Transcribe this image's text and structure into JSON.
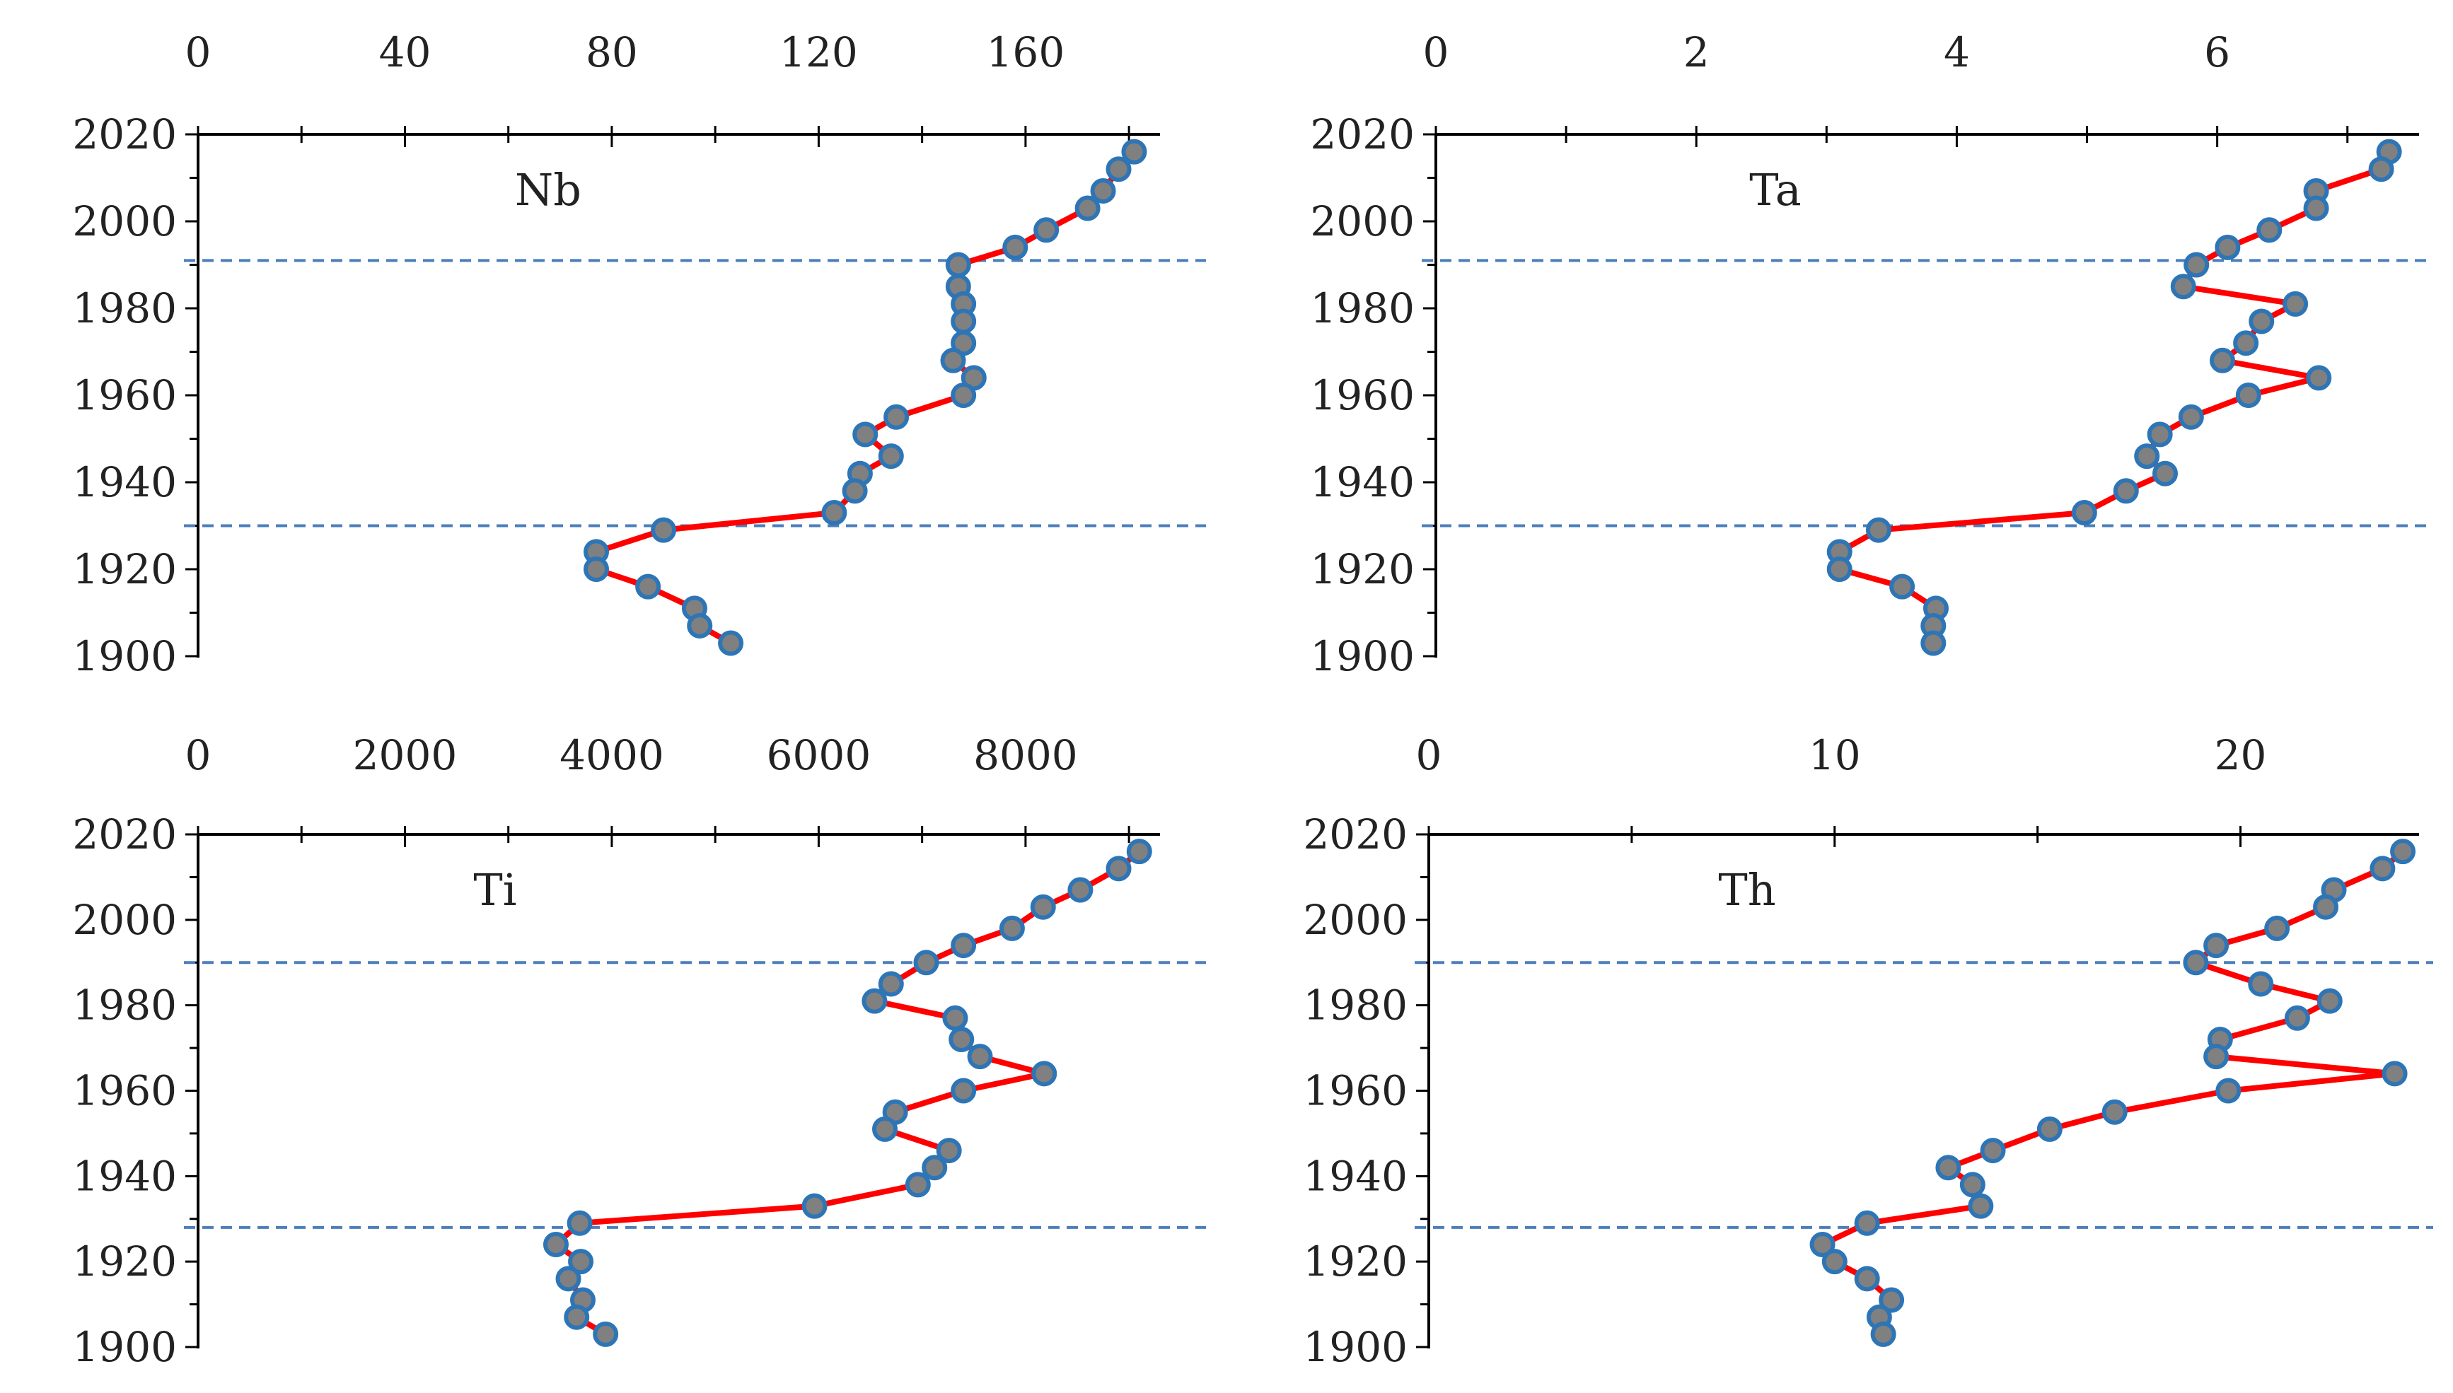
{
  "chart_data": [
    {
      "type": "line",
      "title": "Nb",
      "x_ticks": [
        "0",
        "40",
        "80",
        "120",
        "160"
      ],
      "y_ticks": [
        "1900",
        "1920",
        "1940",
        "1960",
        "1980",
        "2000",
        "2020"
      ],
      "xlim": [
        0,
        186
      ],
      "ylim": [
        1900,
        2020
      ],
      "reference_years": [
        1991,
        1930
      ],
      "series": [
        {
          "x": [
            181,
            178,
            175,
            172,
            164,
            158,
            147,
            147,
            148,
            148,
            148,
            146,
            150,
            148,
            135,
            129,
            134,
            128,
            127,
            123,
            90,
            77,
            77,
            87,
            96,
            97,
            103
          ],
          "y": [
            2016,
            2012,
            2007,
            2003,
            1998,
            1994,
            1990,
            1985,
            1981,
            1977,
            1972,
            1968,
            1964,
            1960,
            1955,
            1951,
            1946,
            1942,
            1938,
            1933,
            1929,
            1924,
            1920,
            1916,
            1911,
            1907,
            1903
          ]
        }
      ]
    },
    {
      "type": "line",
      "title": "Ta",
      "x_ticks": [
        "0",
        "2",
        "4",
        "6"
      ],
      "y_ticks": [
        "1900",
        "1920",
        "1940",
        "1960",
        "1980",
        "2000",
        "2020"
      ],
      "xlim": [
        0,
        7.55
      ],
      "ylim": [
        1900,
        2020
      ],
      "reference_years": [
        1991,
        1930
      ],
      "series": [
        {
          "x": [
            7.32,
            7.26,
            6.76,
            6.76,
            6.4,
            6.08,
            5.84,
            5.74,
            6.6,
            6.34,
            6.22,
            6.04,
            6.78,
            6.24,
            5.8,
            5.56,
            5.46,
            5.6,
            5.3,
            4.98,
            3.4,
            3.1,
            3.1,
            3.58,
            3.84,
            3.82,
            3.82
          ],
          "y": [
            2016,
            2012,
            2007,
            2003,
            1998,
            1994,
            1990,
            1985,
            1981,
            1977,
            1972,
            1968,
            1964,
            1960,
            1955,
            1951,
            1946,
            1942,
            1938,
            1933,
            1929,
            1924,
            1920,
            1916,
            1911,
            1907,
            1903
          ]
        }
      ]
    },
    {
      "type": "line",
      "title": "Ti",
      "x_ticks": [
        "0",
        "2000",
        "4000",
        "6000",
        "8000"
      ],
      "y_ticks": [
        "1900",
        "1920",
        "1940",
        "1960",
        "1980",
        "2000",
        "2020"
      ],
      "xlim": [
        0,
        9300
      ],
      "ylim": [
        1900,
        2020
      ],
      "reference_years": [
        1990,
        1928
      ],
      "series": [
        {
          "x": [
            9100,
            8900,
            8530,
            8170,
            7870,
            7400,
            7040,
            6700,
            6540,
            7320,
            7380,
            7560,
            8180,
            7400,
            6740,
            6640,
            7260,
            7120,
            6960,
            5960,
            3690,
            3460,
            3700,
            3580,
            3720,
            3660,
            3940
          ],
          "y": [
            2016,
            2012,
            2007,
            2003,
            1998,
            1994,
            1990,
            1985,
            1981,
            1977,
            1972,
            1968,
            1964,
            1960,
            1955,
            1951,
            1946,
            1942,
            1938,
            1933,
            1929,
            1924,
            1920,
            1916,
            1911,
            1907,
            1903
          ]
        }
      ]
    },
    {
      "type": "line",
      "title": "Th",
      "x_ticks": [
        "0",
        "10",
        "20"
      ],
      "y_ticks": [
        "1900",
        "1920",
        "1940",
        "1960",
        "1980",
        "2000",
        "2020"
      ],
      "xlim": [
        0,
        24.4
      ],
      "ylim": [
        1900,
        2020
      ],
      "reference_years": [
        1990,
        1928
      ],
      "series": [
        {
          "x": [
            24,
            23.5,
            22.3,
            22.1,
            20.9,
            19.4,
            18.9,
            20.5,
            22.2,
            21.4,
            19.5,
            19.4,
            23.8,
            19.7,
            16.9,
            15.3,
            13.9,
            12.8,
            13.4,
            13.6,
            10.8,
            9.7,
            10,
            10.8,
            11.4,
            11.1,
            11.2
          ],
          "y": [
            2016,
            2012,
            2007,
            2003,
            1998,
            1994,
            1990,
            1985,
            1981,
            1977,
            1972,
            1968,
            1964,
            1960,
            1955,
            1951,
            1946,
            1942,
            1938,
            1933,
            1929,
            1924,
            1920,
            1916,
            1911,
            1907,
            1903
          ]
        }
      ]
    }
  ]
}
